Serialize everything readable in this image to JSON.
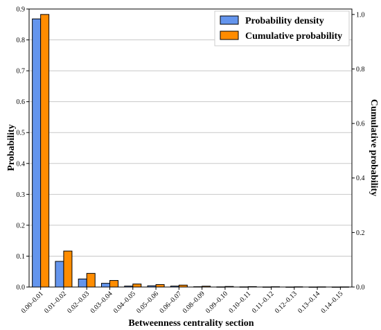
{
  "chart_data": {
    "type": "bar",
    "categories": [
      "0.00–0.01",
      "0.01–0.02",
      "0.02–0.03",
      "0.03–0.04",
      "0.04–0.05",
      "0.05–0.06",
      "0.06–0.07",
      "0.08–0.09",
      "0.09–0.10",
      "0.10–0.11",
      "0.11–0.12",
      "0.12–0.13",
      "0.13–0.14",
      "0.14–0.15"
    ],
    "series": [
      {
        "name": "Probability density",
        "axis": "left",
        "color": "#6495ED",
        "values": [
          0.868,
          0.083,
          0.026,
          0.012,
          0.003,
          0.004,
          0.003,
          0.001,
          0.0005,
          0.0005,
          0.0003,
          0.0002,
          0.0002,
          0.0002
        ]
      },
      {
        "name": "Cumulative probability",
        "axis": "right",
        "color": "#FF8C00",
        "values": [
          1.0,
          0.132,
          0.05,
          0.024,
          0.011,
          0.009,
          0.007,
          0.003,
          0.002,
          0.0015,
          0.001,
          0.0008,
          0.0006,
          0.0005
        ]
      }
    ],
    "xlabel": "Betweenness centrality section",
    "ylabel": "Probability",
    "ylabel_right": "Cumulative probability",
    "ylim": [
      0,
      0.9
    ],
    "ylim_right": [
      0,
      1.02
    ],
    "yticks": [
      "0.0",
      "0.1",
      "0.2",
      "0.3",
      "0.4",
      "0.5",
      "0.6",
      "0.7",
      "0.8",
      "0.9"
    ],
    "yticks_right": [
      "0.0",
      "0.2",
      "0.4",
      "0.6",
      "0.8",
      "1.0"
    ],
    "grid": "horizontal",
    "legend_position": "top-right"
  }
}
